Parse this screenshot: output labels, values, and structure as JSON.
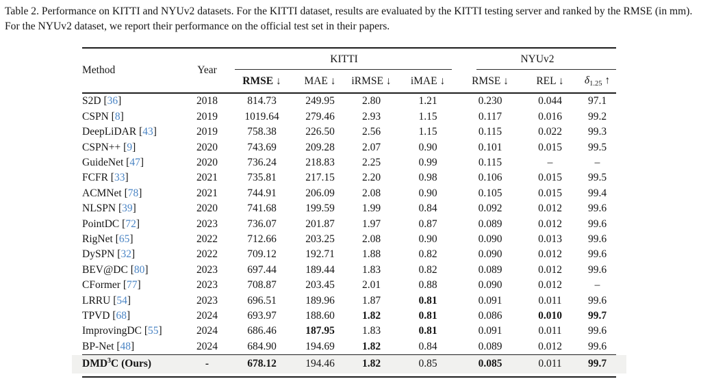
{
  "caption": "Table 2. Performance on KITTI and NYUv2 datasets. For the KITTI dataset, results are evaluated by the KITTI testing server and ranked by the RMSE (in mm). For the NYUv2 dataset, we report their performance on the official test set in their papers.",
  "colors": {
    "citation_blue": "#4a84c4",
    "highlight_bg": "#f1f1ef",
    "rule": "#1c1c1c"
  },
  "chart_data": {
    "type": "table",
    "title": "Table 2. Performance on KITTI and NYUv2 datasets."
  },
  "table": {
    "head": {
      "method": "Method",
      "year": "Year",
      "group_kitti": "KITTI",
      "group_nyu": "NYUv2",
      "cols": [
        "RMSE ↓",
        "MAE ↓",
        "iRMSE ↓",
        "iMAE ↓",
        "RMSE ↓",
        "REL ↓"
      ],
      "delta": {
        "symbol": "δ",
        "sub": "1.25",
        "arrow": " ↑"
      }
    },
    "rows": [
      {
        "method": "S2D",
        "ref": "36",
        "year": "2018",
        "values": [
          "814.73",
          "249.95",
          "2.80",
          "1.21",
          "0.230",
          "0.044",
          "97.1"
        ],
        "bold": []
      },
      {
        "method": "CSPN",
        "ref": "8",
        "year": "2019",
        "values": [
          "1019.64",
          "279.46",
          "2.93",
          "1.15",
          "0.117",
          "0.016",
          "99.2"
        ],
        "bold": []
      },
      {
        "method": "DeepLiDAR",
        "ref": "43",
        "year": "2019",
        "values": [
          "758.38",
          "226.50",
          "2.56",
          "1.15",
          "0.115",
          "0.022",
          "99.3"
        ],
        "bold": []
      },
      {
        "method": "CSPN++",
        "ref": "9",
        "year": "2020",
        "values": [
          "743.69",
          "209.28",
          "2.07",
          "0.90",
          "0.101",
          "0.015",
          "99.5"
        ],
        "bold": []
      },
      {
        "method": "GuideNet",
        "ref": "47",
        "year": "2020",
        "values": [
          "736.24",
          "218.83",
          "2.25",
          "0.99",
          "0.115",
          "–",
          "–"
        ],
        "bold": []
      },
      {
        "method": "FCFR",
        "ref": "33",
        "year": "2021",
        "values": [
          "735.81",
          "217.15",
          "2.20",
          "0.98",
          "0.106",
          "0.015",
          "99.5"
        ],
        "bold": []
      },
      {
        "method": "ACMNet",
        "ref": "78",
        "year": "2021",
        "values": [
          "744.91",
          "206.09",
          "2.08",
          "0.90",
          "0.105",
          "0.015",
          "99.4"
        ],
        "bold": []
      },
      {
        "method": "NLSPN",
        "ref": "39",
        "year": "2020",
        "values": [
          "741.68",
          "199.59",
          "1.99",
          "0.84",
          "0.092",
          "0.012",
          "99.6"
        ],
        "bold": []
      },
      {
        "method": "PointDC",
        "ref": "72",
        "year": "2023",
        "values": [
          "736.07",
          "201.87",
          "1.97",
          "0.87",
          "0.089",
          "0.012",
          "99.6"
        ],
        "bold": []
      },
      {
        "method": "RigNet",
        "ref": "65",
        "year": "2022",
        "values": [
          "712.66",
          "203.25",
          "2.08",
          "0.90",
          "0.090",
          "0.013",
          "99.6"
        ],
        "bold": []
      },
      {
        "method": "DySPN",
        "ref": "32",
        "year": "2022",
        "values": [
          "709.12",
          "192.71",
          "1.88",
          "0.82",
          "0.090",
          "0.012",
          "99.6"
        ],
        "bold": []
      },
      {
        "method": "BEV@DC",
        "ref": "80",
        "year": "2023",
        "values": [
          "697.44",
          "189.44",
          "1.83",
          "0.82",
          "0.089",
          "0.012",
          "99.6"
        ],
        "bold": []
      },
      {
        "method": "CFormer",
        "ref": "77",
        "year": "2023",
        "values": [
          "708.87",
          "203.45",
          "2.01",
          "0.88",
          "0.090",
          "0.012",
          "–"
        ],
        "bold": []
      },
      {
        "method": "LRRU",
        "ref": "54",
        "year": "2023",
        "values": [
          "696.51",
          "189.96",
          "1.87",
          "0.81",
          "0.091",
          "0.011",
          "99.6"
        ],
        "bold": [
          3
        ]
      },
      {
        "method": "TPVD",
        "ref": "68",
        "year": "2024",
        "values": [
          "693.97",
          "188.60",
          "1.82",
          "0.81",
          "0.086",
          "0.010",
          "99.7"
        ],
        "bold": [
          2,
          3,
          5,
          6
        ]
      },
      {
        "method": "ImprovingDC",
        "ref": "55",
        "year": "2024",
        "values": [
          "686.46",
          "187.95",
          "1.83",
          "0.81",
          "0.091",
          "0.011",
          "99.6"
        ],
        "bold": [
          1,
          3
        ]
      },
      {
        "method": "BP-Net",
        "ref": "48",
        "year": "2024",
        "values": [
          "684.90",
          "194.69",
          "1.82",
          "0.84",
          "0.089",
          "0.012",
          "99.6"
        ],
        "bold": [
          2
        ]
      },
      {
        "method": "DMD",
        "sup": "3",
        "method2": "C (Ours)",
        "method_bold": true,
        "ours": true,
        "ref": null,
        "year": "-",
        "values": [
          "678.12",
          "194.46",
          "1.82",
          "0.85",
          "0.085",
          "0.011",
          "99.7"
        ],
        "bold": [
          0,
          2,
          4,
          6
        ]
      }
    ]
  }
}
